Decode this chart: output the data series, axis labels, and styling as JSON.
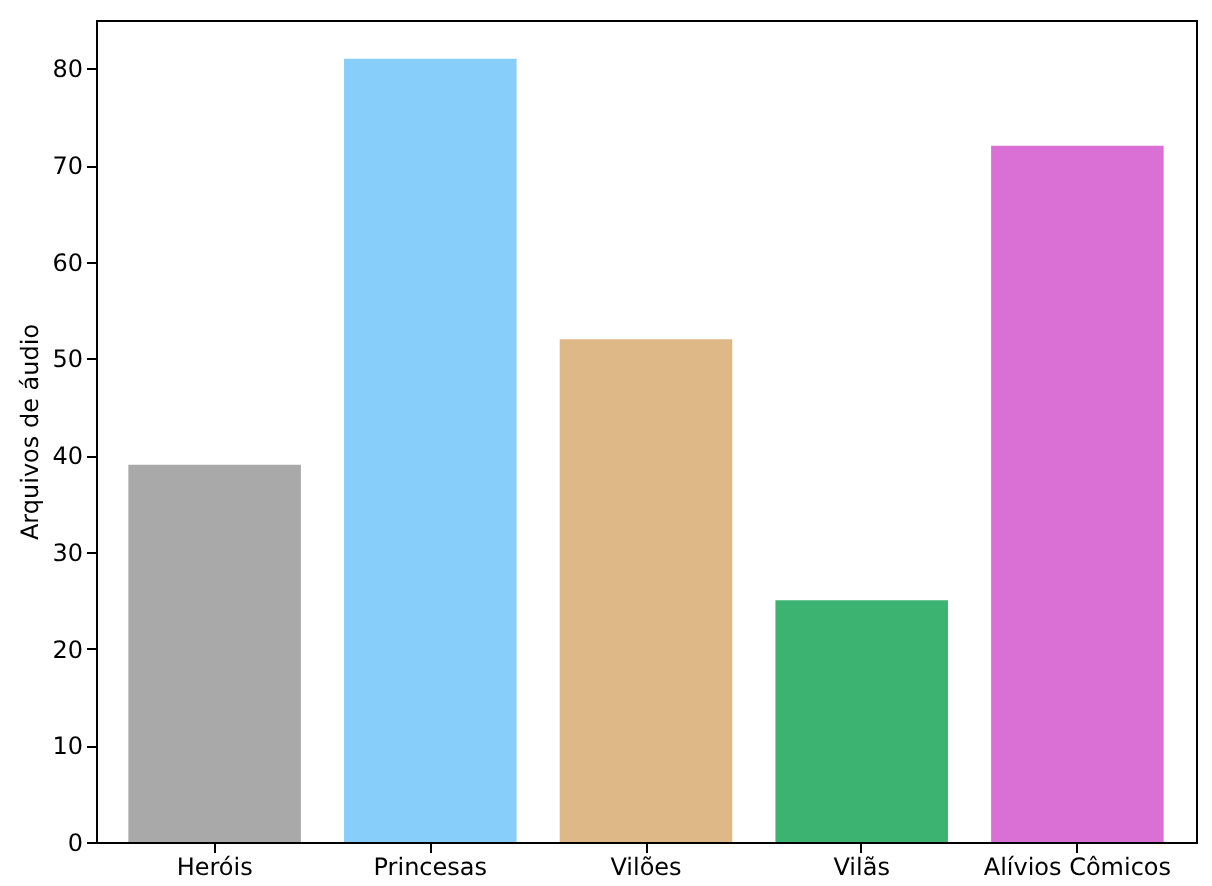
{
  "chart_data": {
    "type": "bar",
    "ylabel": "Arquivos de áudio",
    "categories": [
      "Heróis",
      "Princesas",
      "Vilões",
      "Vilãs",
      "Alívios Cômicos"
    ],
    "values": [
      39,
      81,
      52,
      25,
      72
    ],
    "colors": [
      "#a9a9a9",
      "#87cefa",
      "#deb887",
      "#3cb371",
      "#da70d6"
    ],
    "ylim": [
      0,
      85
    ],
    "yticks": [
      0,
      10,
      20,
      30,
      40,
      50,
      60,
      70,
      80
    ],
    "grid": false,
    "legend": false
  }
}
